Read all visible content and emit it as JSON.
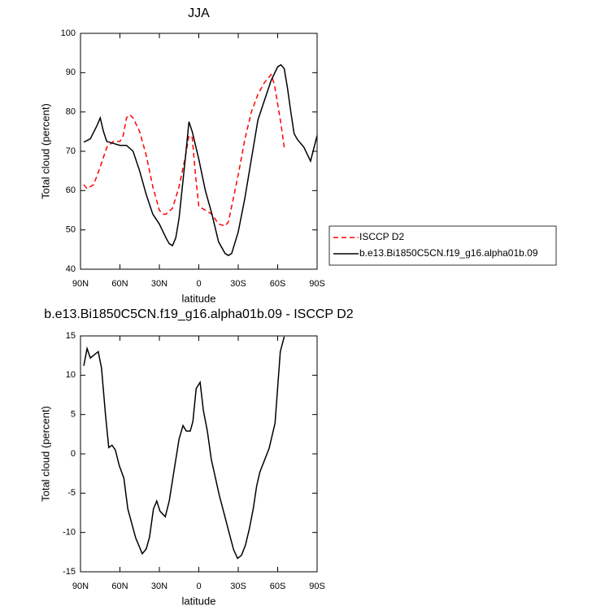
{
  "chart_data": [
    {
      "type": "line",
      "title": "JJA",
      "xlabel": "latitude",
      "ylabel": "Total cloud (percent)",
      "xlim": [
        90,
        -90
      ],
      "xticks": [
        {
          "value": 90,
          "label": "90N"
        },
        {
          "value": 60,
          "label": "60N"
        },
        {
          "value": 30,
          "label": "30N"
        },
        0,
        {
          "value": -30,
          "label": "30S"
        },
        {
          "value": -60,
          "label": "60S"
        },
        {
          "value": -90,
          "label": "90S"
        }
      ],
      "ylim": [
        40,
        100
      ],
      "yticks": [
        40,
        50,
        60,
        70,
        80,
        90,
        100
      ],
      "legend": "right",
      "series": [
        {
          "name": "ISCCP D2",
          "color": "#ff0000",
          "dashed": true,
          "x": [
            87.5,
            85,
            80,
            75,
            70,
            65,
            60,
            57.5,
            55,
            52.5,
            50,
            45,
            40,
            35,
            30,
            27.5,
            25,
            20,
            15,
            10,
            7.5,
            5,
            2.5,
            0,
            -5,
            -10,
            -15,
            -20,
            -22.5,
            -25,
            -30,
            -35,
            -40,
            -45,
            -50,
            -55,
            -57.5,
            -60,
            -62.5,
            -65
          ],
          "values": [
            61.5,
            60.5,
            61.5,
            66,
            71,
            72.5,
            72.5,
            74,
            78.5,
            79.3,
            78.5,
            75,
            69,
            61,
            55,
            54,
            54,
            55.5,
            61,
            69,
            74,
            73.5,
            64,
            56,
            55,
            54,
            51.5,
            51,
            52,
            56,
            64,
            73,
            80,
            84.5,
            87.5,
            89.5,
            87,
            82,
            77,
            71
          ]
        },
        {
          "name": "b.e13.Bi1850C5CN.f19_g16.alpha01b.09",
          "color": "#000000",
          "dashed": false,
          "x": [
            87.5,
            82.5,
            77.5,
            75,
            72.5,
            70,
            65,
            60,
            55,
            50,
            45,
            40,
            35,
            30,
            25,
            22.5,
            20,
            17.5,
            15,
            10,
            7.5,
            5,
            0,
            -5,
            -10,
            -15,
            -20,
            -22.5,
            -25,
            -30,
            -35,
            -40,
            -45,
            -50,
            -55,
            -60,
            -62.5,
            -65,
            -67.5,
            -70,
            -72.5,
            -75,
            -80,
            -85,
            -90
          ],
          "values": [
            72.3,
            73.2,
            76.5,
            78.5,
            75,
            72.5,
            72,
            71.5,
            71.5,
            70,
            65,
            59,
            54,
            51.5,
            48,
            46.5,
            46,
            48,
            53,
            69,
            77.5,
            75,
            68,
            60,
            54,
            47,
            44,
            43.5,
            44,
            49.5,
            58,
            68,
            78,
            83,
            88,
            91.5,
            92,
            91,
            86,
            80,
            74.5,
            73,
            71,
            67.5,
            74
          ]
        }
      ]
    },
    {
      "type": "line",
      "title": "b.e13.Bi1850C5CN.f19_g16.alpha01b.09 - ISCCP D2",
      "xlabel": "latitude",
      "ylabel": "Total cloud (percent)",
      "xlim": [
        90,
        -90
      ],
      "xticks": [
        {
          "value": 90,
          "label": "90N"
        },
        {
          "value": 60,
          "label": "60N"
        },
        {
          "value": 30,
          "label": "30N"
        },
        0,
        {
          "value": -30,
          "label": "30S"
        },
        {
          "value": -60,
          "label": "60S"
        },
        {
          "value": -90,
          "label": "90S"
        }
      ],
      "ylim": [
        -15,
        15
      ],
      "yticks": [
        -15,
        -10,
        -5,
        0,
        5,
        10,
        15
      ],
      "series": [
        {
          "color": "#000000",
          "dashed": false,
          "x": [
            87.5,
            85,
            82.5,
            76.5,
            74,
            71,
            68.5,
            66,
            63.5,
            60.5,
            57,
            54,
            48,
            43,
            40,
            37.5,
            34.5,
            32,
            29.5,
            25.5,
            22.5,
            19,
            15,
            12,
            9.5,
            6.5,
            4.5,
            2,
            -1,
            -3.5,
            -6.5,
            -9.5,
            -15.5,
            -23,
            -26.5,
            -29.5,
            -32.5,
            -35.5,
            -38.5,
            -41.5,
            -44,
            -46.5,
            -53.5,
            -58,
            -62,
            -65
          ],
          "values": [
            11.2,
            13.4,
            12.2,
            13,
            10.9,
            5,
            0.8,
            1.1,
            0.5,
            -1.5,
            -3.1,
            -7,
            -10.7,
            -12.7,
            -12.1,
            -10.6,
            -7,
            -6,
            -7.3,
            -8,
            -6,
            -2.3,
            1.9,
            3.6,
            2.9,
            2.9,
            4.1,
            8.3,
            9.1,
            5.5,
            2.9,
            -0.7,
            -5.2,
            -10,
            -12.2,
            -13.3,
            -12.9,
            -11.6,
            -9.5,
            -6.9,
            -4.1,
            -2.3,
            0.7,
            3.9,
            13,
            14.9
          ]
        }
      ]
    }
  ]
}
